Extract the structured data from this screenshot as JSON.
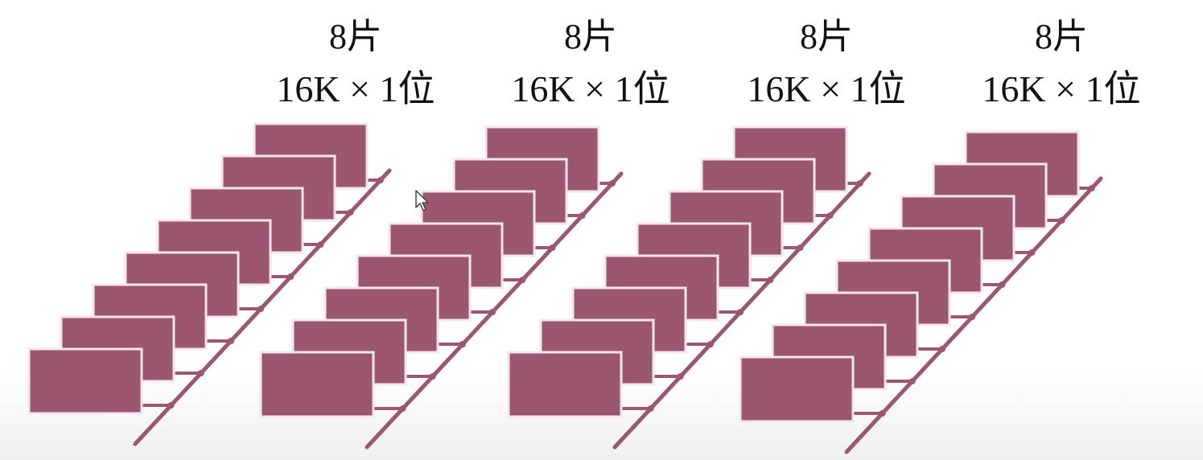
{
  "groups": [
    {
      "count": "8片",
      "spec": "16K × 1位"
    },
    {
      "count": "8片",
      "spec": "16K × 1位"
    },
    {
      "count": "8片",
      "spec": "16K × 1位"
    },
    {
      "count": "8片",
      "spec": "16K × 1位"
    }
  ],
  "colors": {
    "chip": "#9b5670",
    "chip_border": "#f4e6ee"
  },
  "icons": {
    "cursor": "mouse-pointer-icon"
  }
}
